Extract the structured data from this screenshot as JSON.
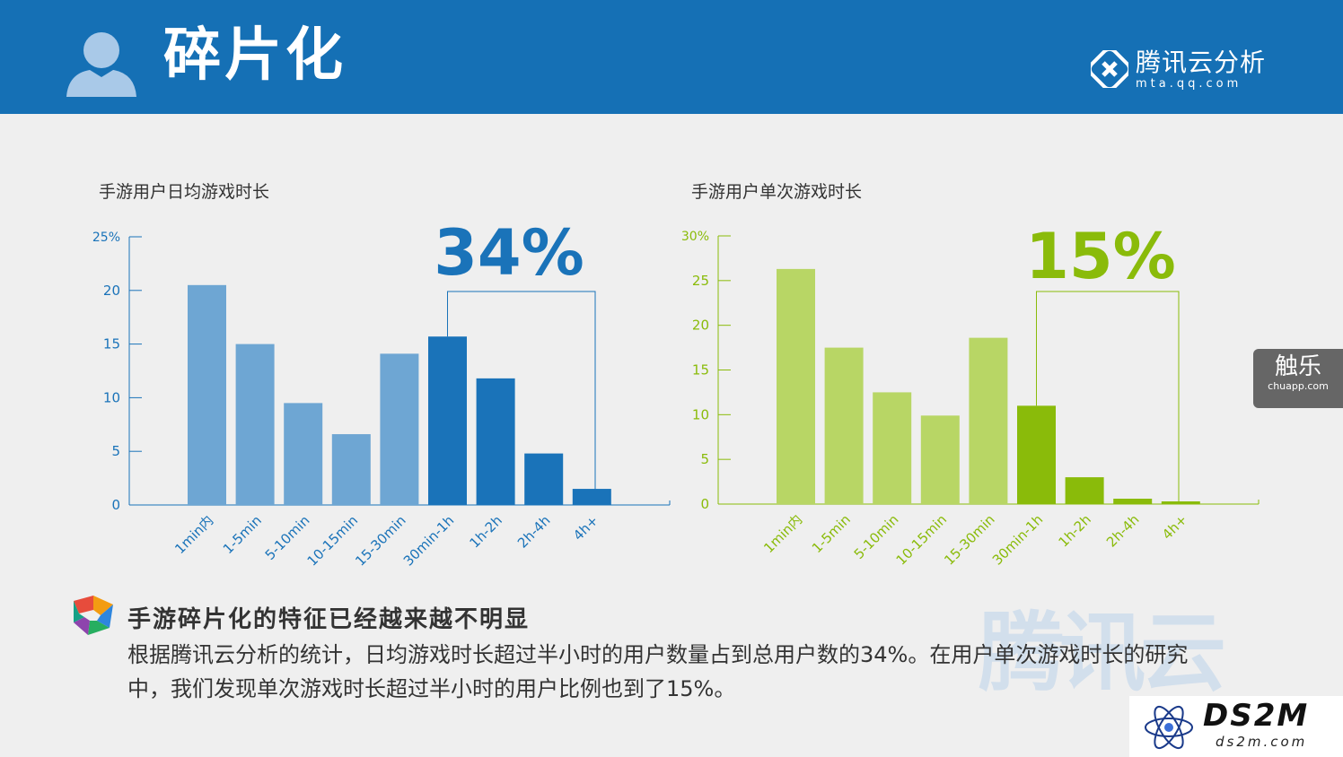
{
  "header": {
    "title": "碎片化",
    "brand_name": "腾讯云分析",
    "brand_url": "mta.qq.com"
  },
  "side_tab": {
    "name": "触乐",
    "url": "chuapp.com"
  },
  "summary": {
    "heading": "手游碎片化的特征已经越来越不明显",
    "body_line1": "根据腾讯云分析的统计，日均游戏时长超过半小时的用户数量占到总用户数的34%。在用户单次游戏时长的研究",
    "body_line2": "中，我们发现单次游戏时长超过半小时的用户比例也到了15%。"
  },
  "watermark": {
    "text": "腾讯云",
    "ds2m_name": "DS2M",
    "ds2m_url": "ds2m.com"
  },
  "colors": {
    "header_bg": "#1570b5",
    "blue_light": "#6ea6d3",
    "blue_dark": "#1a73b9",
    "green_light": "#b8d665",
    "green_dark": "#8abb0a"
  },
  "chart_data": [
    {
      "type": "bar",
      "title": "手游用户日均游戏时长",
      "categories": [
        "1min内",
        "1-5min",
        "5-10min",
        "10-15min",
        "15-30min",
        "30min-1h",
        "1h-2h",
        "2h-4h",
        "4h+"
      ],
      "values": [
        20.5,
        15.0,
        9.5,
        6.6,
        14.1,
        15.7,
        11.8,
        4.8,
        1.5
      ],
      "yticks": [
        "25%",
        "20",
        "15",
        "10",
        "5",
        "0"
      ],
      "ylim": [
        0,
        25
      ],
      "highlight_from": 5,
      "callout": "34%"
    },
    {
      "type": "bar",
      "title": "手游用户单次游戏时长",
      "categories": [
        "1min内",
        "1-5min",
        "5-10min",
        "10-15min",
        "15-30min",
        "30min-1h",
        "1h-2h",
        "2h-4h",
        "4h+"
      ],
      "values": [
        26.3,
        17.5,
        12.5,
        9.9,
        18.6,
        11.0,
        3.0,
        0.6,
        0.3
      ],
      "yticks": [
        "30%",
        "25",
        "20",
        "15",
        "10",
        "5",
        "0"
      ],
      "ylim": [
        0,
        30
      ],
      "highlight_from": 5,
      "callout": "15%"
    }
  ]
}
